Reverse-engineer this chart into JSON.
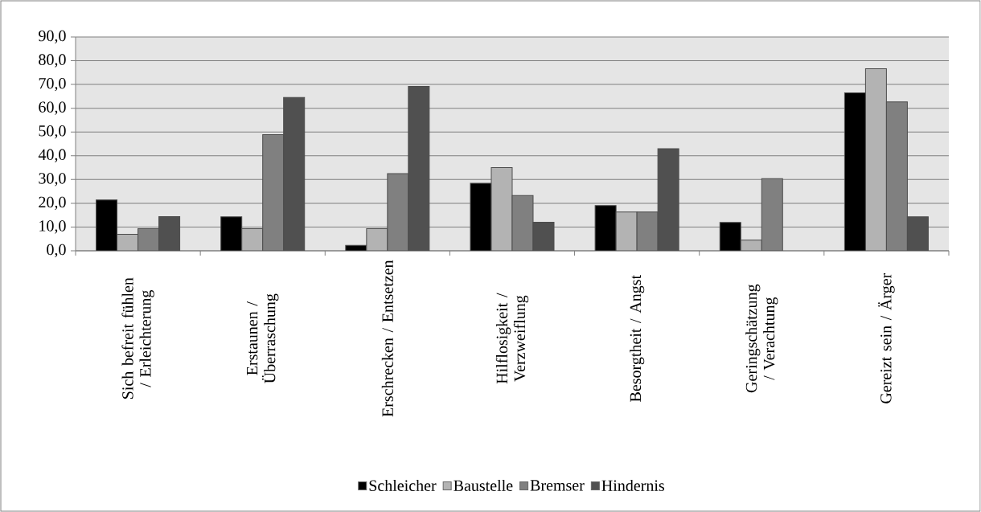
{
  "chart_data": {
    "type": "bar",
    "categories": [
      "Sich befreit fühlen / Erleichterung",
      "Erstaunen / Überraschung",
      "Erschrecken / Entsetzen",
      "Hilflosigkeit / Verzweiflung",
      "Besorgtheit / Angst",
      "Geringschätzung / Verachtung",
      "Gereizt sein / Ärger"
    ],
    "series": [
      {
        "name": "Schleicher",
        "color": "#000000",
        "values": [
          21.4,
          14.3,
          2.3,
          28.4,
          19.0,
          11.9,
          66.5
        ]
      },
      {
        "name": "Baustelle",
        "color": "#b3b3b3",
        "values": [
          6.9,
          9.3,
          9.3,
          35.0,
          16.3,
          4.5,
          76.6
        ]
      },
      {
        "name": "Bremser",
        "color": "#808080",
        "values": [
          9.3,
          48.9,
          32.5,
          23.3,
          16.3,
          30.4,
          62.7
        ]
      },
      {
        "name": "Hindernis",
        "color": "#505050",
        "values": [
          14.4,
          64.5,
          69.2,
          12.0,
          43.0,
          null,
          14.3
        ]
      }
    ],
    "ylim": [
      0,
      90
    ],
    "yticks": [
      {
        "value": 0,
        "label": "0,0"
      },
      {
        "value": 10,
        "label": "10,0"
      },
      {
        "value": 20,
        "label": "20,0"
      },
      {
        "value": 30,
        "label": "30,0"
      },
      {
        "value": 40,
        "label": "40,0"
      },
      {
        "value": 50,
        "label": "50,0"
      },
      {
        "value": 60,
        "label": "60,0"
      },
      {
        "value": 70,
        "label": "70,0"
      },
      {
        "value": 80,
        "label": "80,0"
      },
      {
        "value": 90,
        "label": "90,0"
      }
    ],
    "grid": "y",
    "legend": "bottom"
  }
}
